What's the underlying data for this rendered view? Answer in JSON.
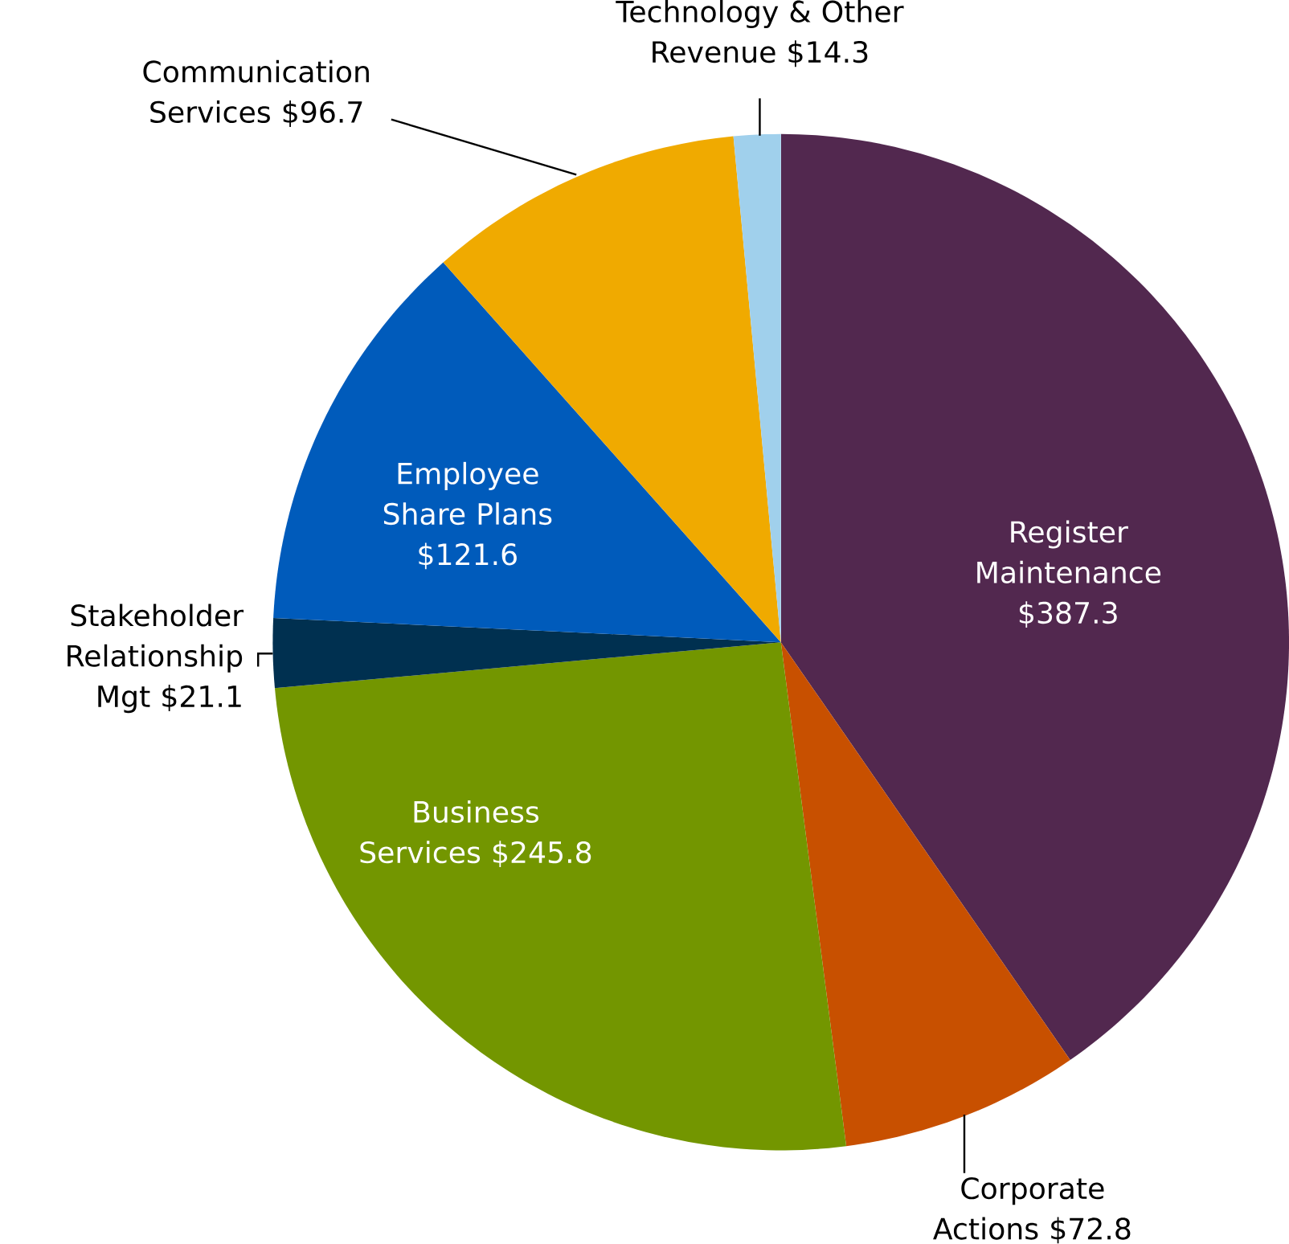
{
  "chart_data": {
    "type": "pie",
    "categories": [
      "Register Maintenance",
      "Corporate Actions",
      "Business Services",
      "Stakeholder Relationship Mgt",
      "Employee Share Plans",
      "Communication Services",
      "Technology & Other Revenue"
    ],
    "values": [
      387.3,
      72.8,
      245.8,
      21.1,
      121.6,
      96.7,
      14.3
    ],
    "value_labels": [
      "$387.3",
      "$72.8",
      "$245.8",
      "$21.1",
      "$121.6",
      "$96.7",
      "$14.3"
    ],
    "colors": [
      "#52284f",
      "#c85000",
      "#739600",
      "#003050",
      "#005bbb",
      "#f0aa00",
      "#a0d0ec"
    ]
  }
}
